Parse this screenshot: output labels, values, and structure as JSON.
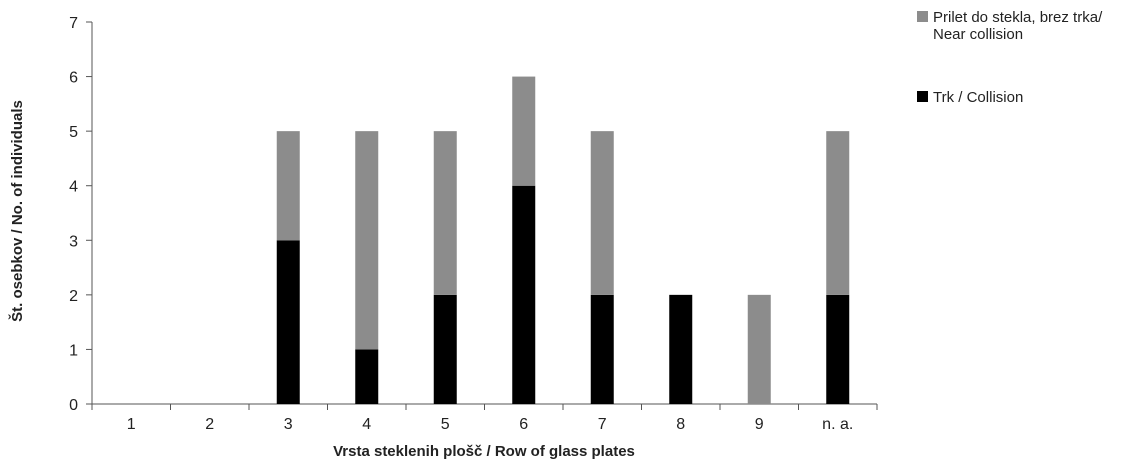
{
  "chart_data": {
    "type": "bar",
    "stacked": true,
    "categories": [
      "1",
      "2",
      "3",
      "4",
      "5",
      "6",
      "7",
      "8",
      "9",
      "n. a."
    ],
    "series": [
      {
        "name": "Trk / Collision",
        "color": "#000000",
        "values": [
          0,
          0,
          3,
          1,
          2,
          4,
          2,
          2,
          0,
          2
        ]
      },
      {
        "name": "Prilet do stekla, brez trka/ Near collision",
        "name_lines": [
          "Prilet do stekla, brez trka/",
          "Near collision"
        ],
        "color": "#8c8c8c",
        "values": [
          0,
          0,
          2,
          4,
          3,
          2,
          3,
          0,
          2,
          3
        ]
      }
    ],
    "xlabel": "Vrsta steklenih plošč / Row of glass plates",
    "ylabel": "Št. osebkov / No. of individuals",
    "ylim": [
      0,
      7
    ],
    "yticks": [
      "0",
      "1",
      "2",
      "3",
      "4",
      "5",
      "6",
      "7"
    ],
    "grid": false,
    "legend_position": "top-right"
  }
}
